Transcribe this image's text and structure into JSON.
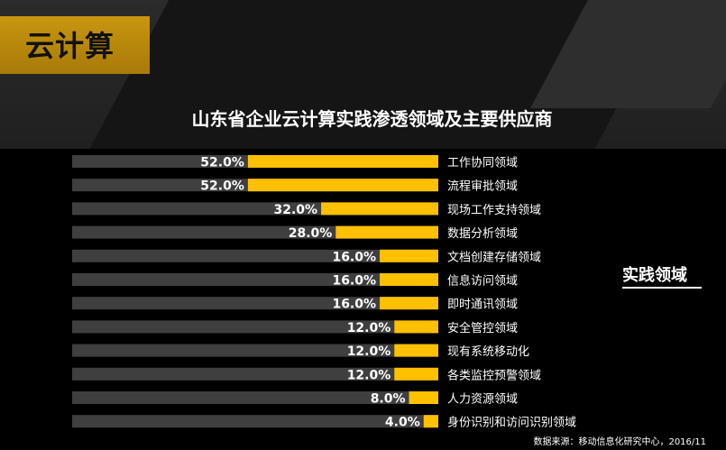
{
  "section": {
    "tag": "云计算"
  },
  "chart_data": {
    "type": "bar",
    "orientation": "horizontal",
    "title": "山东省企业云计算实践渗透领域及主要供应商",
    "categories": [
      "工作协同领域",
      "流程审批领域",
      "现场工作支持领域",
      "数据分析领域",
      "文档创建存储领域",
      "信息访问领域",
      "即时通讯领域",
      "安全管控领域",
      "现有系统移动化",
      "各类监控预警领域",
      "人力资源领域",
      "身份识别和访问识别领域"
    ],
    "values": [
      52.0,
      52.0,
      32.0,
      28.0,
      16.0,
      16.0,
      16.0,
      12.0,
      12.0,
      12.0,
      8.0,
      4.0
    ],
    "data_labels": [
      "52.0%",
      "52.0%",
      "32.0%",
      "28.0%",
      "16.0%",
      "16.0%",
      "16.0%",
      "12.0%",
      "12.0%",
      "12.0%",
      "8.0%",
      "4.0%"
    ],
    "xlim": [
      0,
      100
    ],
    "grid": false,
    "colors": {
      "value_bar": "#ffc000",
      "track": "#3f3f3f",
      "label_text": "#ffffff"
    }
  },
  "side_label": "实践领域",
  "source": "数据来源：移动信息化研究中心，2016/11",
  "colors": {
    "accent": "#ffc000",
    "tag_bg": "#b8860b",
    "background": "#000000"
  }
}
